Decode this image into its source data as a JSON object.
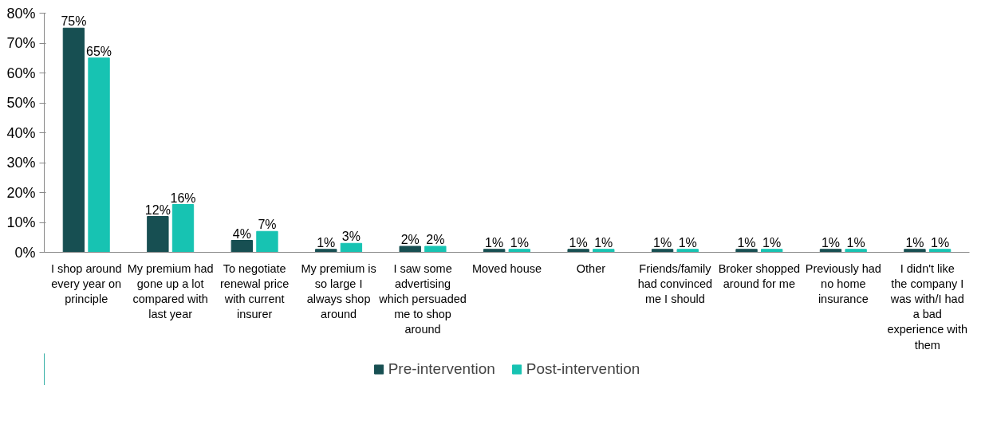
{
  "chart_data": {
    "type": "bar",
    "categories": [
      "I shop around every year on principle",
      "My premium had gone up a lot compared with last year",
      "To negotiate renewal price with current insurer",
      "My premium is so large I always shop around",
      "I saw some advertising which persuaded me to shop around",
      "Moved house",
      "Other",
      "Friends/family had convinced me I should",
      "Broker shopped around for me",
      "Previously had no home insurance",
      "I didn't like the company I was with/I had a bad experience with them"
    ],
    "series": [
      {
        "name": "Pre-intervention",
        "color": "#174f52",
        "values": [
          75,
          12,
          4,
          1,
          2,
          1,
          1,
          1,
          1,
          1,
          1
        ],
        "value_labels": [
          "75%",
          "12%",
          "4%",
          "1%",
          "2%",
          "1%",
          "1%",
          "1%",
          "1%",
          "1%",
          "1%"
        ]
      },
      {
        "name": "Post-intervention",
        "color": "#17c3b2",
        "values": [
          65,
          16,
          7,
          3,
          2,
          1,
          1,
          1,
          1,
          1,
          1
        ],
        "value_labels": [
          "65%",
          "16%",
          "7%",
          "3%",
          "2%",
          "1%",
          "1%",
          "1%",
          "1%",
          "1%",
          "1%"
        ]
      }
    ],
    "ylim": [
      0,
      80
    ],
    "yticks": [
      {
        "value": 0,
        "label": "0%"
      },
      {
        "value": 10,
        "label": "10%"
      },
      {
        "value": 20,
        "label": "20%"
      },
      {
        "value": 30,
        "label": "30%"
      },
      {
        "value": 40,
        "label": "40%"
      },
      {
        "value": 50,
        "label": "50%"
      },
      {
        "value": 60,
        "label": "60%"
      },
      {
        "value": 70,
        "label": "70%"
      },
      {
        "value": 80,
        "label": "80%"
      }
    ],
    "grid": false,
    "legend": "bottom"
  }
}
